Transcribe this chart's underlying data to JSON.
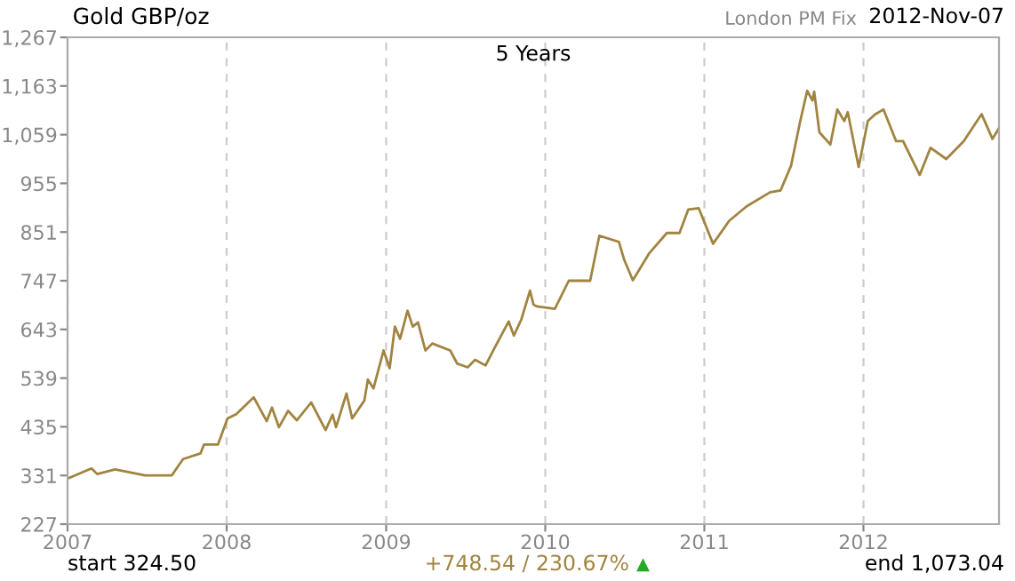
{
  "chart_data": {
    "type": "line",
    "title": "Gold GBP/oz",
    "subtitle": "5 Years",
    "annotations": [
      "London PM Fix",
      "2012-Nov-07",
      "start 324.50",
      "+748.54 / 230.67%",
      "▲",
      "end 1,073.04"
    ],
    "x": [
      "2007-01-02",
      "2007-02-25",
      "2007-03-10",
      "2007-04-20",
      "2007-06-28",
      "2007-08-28",
      "2007-09-23",
      "2007-11-02",
      "2007-11-10",
      "2007-12-12",
      "2008-01-03",
      "2008-01-23",
      "2008-03-03",
      "2008-04-02",
      "2008-04-14",
      "2008-04-30",
      "2008-05-21",
      "2008-06-10",
      "2008-07-13",
      "2008-08-15",
      "2008-08-31",
      "2008-09-08",
      "2008-10-02",
      "2008-10-15",
      "2008-11-12",
      "2008-11-20",
      "2008-12-03",
      "2008-12-26",
      "2009-01-09",
      "2009-01-21",
      "2009-02-02",
      "2009-02-19",
      "2009-03-03",
      "2009-03-15",
      "2009-04-01",
      "2009-04-17",
      "2009-05-28",
      "2009-06-13",
      "2009-07-07",
      "2009-07-24",
      "2009-08-17",
      "2009-09-07",
      "2009-10-09",
      "2009-10-21",
      "2009-11-07",
      "2009-11-27",
      "2009-12-05",
      "2009-12-13",
      "2010-01-23",
      "2010-02-24",
      "2010-04-14",
      "2010-05-05",
      "2010-06-19",
      "2010-07-01",
      "2010-07-21",
      "2010-08-27",
      "2010-10-07",
      "2010-11-05",
      "2010-11-25",
      "2010-12-19",
      "2011-01-21",
      "2011-02-27",
      "2011-04-08",
      "2011-06-01",
      "2011-06-25",
      "2011-07-19",
      "2011-08-09",
      "2011-08-25",
      "2011-09-06",
      "2011-09-10",
      "2011-09-22",
      "2011-10-17",
      "2011-11-02",
      "2011-11-18",
      "2011-11-26",
      "2011-12-21",
      "2012-01-11",
      "2012-01-27",
      "2012-02-16",
      "2012-03-16",
      "2012-04-01",
      "2012-05-09",
      "2012-06-03",
      "2012-07-09",
      "2012-08-18",
      "2012-09-28",
      "2012-10-23",
      "2012-11-07"
    ],
    "series": [
      {
        "color": "#a08440",
        "values": [
          324.5,
          346,
          334,
          344,
          331,
          331,
          366,
          378,
          397,
          397,
          453,
          462,
          498,
          447,
          476,
          434,
          469,
          449,
          487,
          428,
          461,
          434,
          506,
          453,
          491,
          536,
          517,
          598,
          560,
          649,
          623,
          683,
          649,
          658,
          598,
          613,
          598,
          570,
          562,
          578,
          566,
          604,
          660,
          630,
          664,
          726,
          696,
          692,
          687,
          747,
          747,
          843,
          830,
          792,
          748,
          805,
          849,
          849,
          899,
          902,
          826,
          875,
          906,
          936,
          940,
          993,
          1088,
          1153,
          1132,
          1151,
          1064,
          1038,
          1113,
          1088,
          1107,
          990,
          1088,
          1102,
          1113,
          1045,
          1045,
          973,
          1031,
          1007,
          1045,
          1103,
          1050,
          1073.04
        ]
      }
    ],
    "xlim": [
      "2007-01-01",
      "2012-11-07"
    ],
    "xticks": [
      {
        "value": "2007-01-01",
        "label": "2007"
      },
      {
        "value": "2008-01-01",
        "label": "2008"
      },
      {
        "value": "2009-01-01",
        "label": "2009"
      },
      {
        "value": "2010-01-01",
        "label": "2010"
      },
      {
        "value": "2011-01-01",
        "label": "2011"
      },
      {
        "value": "2012-01-01",
        "label": "2012"
      }
    ],
    "ylim": [
      227,
      1267
    ],
    "yticks": [
      227,
      331,
      435,
      539,
      643,
      747,
      851,
      955,
      {
        "value": 1059,
        "label": "1,059"
      },
      {
        "value": 1163,
        "label": "1,163"
      },
      {
        "value": 1267,
        "label": "1,267"
      }
    ],
    "grid": "x",
    "line_style": "solid",
    "marker": "none",
    "legend": false
  }
}
